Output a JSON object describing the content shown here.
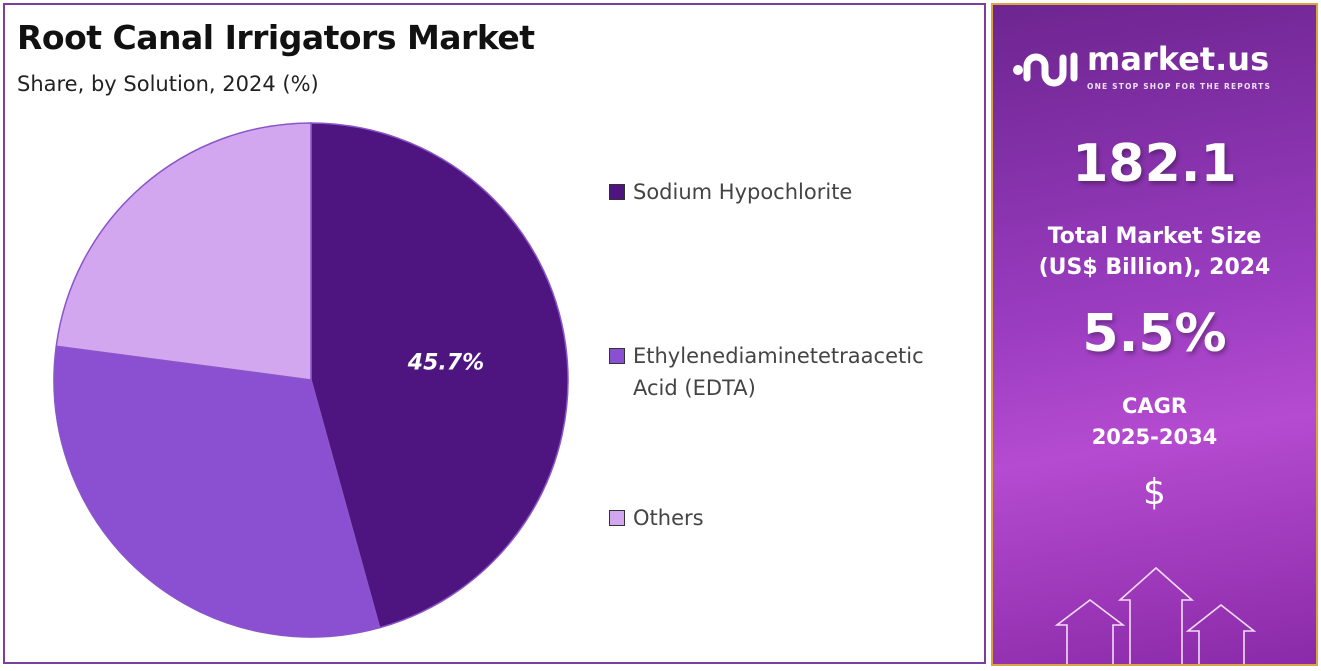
{
  "chart_data": {
    "type": "pie",
    "title": "Root Canal Irrigators Market",
    "subtitle": "Share, by Solution, 2024 (%)",
    "legend_placement": "right",
    "slices": [
      {
        "name": "Sodium Hypochlorite",
        "value": 45.7,
        "label": "45.7%",
        "color": "#4e1581"
      },
      {
        "name": "Ethylenediaminetetraacetic Acid (EDTA)",
        "value": 31.4,
        "label": "",
        "color": "#8b4fd1"
      },
      {
        "name": "Others",
        "value": 22.9,
        "label": "",
        "color": "#d3a7ef"
      }
    ]
  },
  "legend": {
    "items": [
      {
        "line1": "Sodium Hypochlorite",
        "line2": ""
      },
      {
        "line1": "Ethylenediaminetetraacetic",
        "line2": "Acid (EDTA)"
      },
      {
        "line1": "Others",
        "line2": ""
      }
    ]
  },
  "sidebar": {
    "brand": "market.us",
    "tagline": "ONE STOP SHOP FOR THE REPORTS",
    "market_size": "182.1",
    "market_size_label_1": "Total Market Size",
    "market_size_label_2": "(US$ Billion), 2024",
    "cagr": "5.5%",
    "cagr_label_1": "CAGR",
    "cagr_label_2": "2025-2034",
    "currency_symbol": "$"
  }
}
